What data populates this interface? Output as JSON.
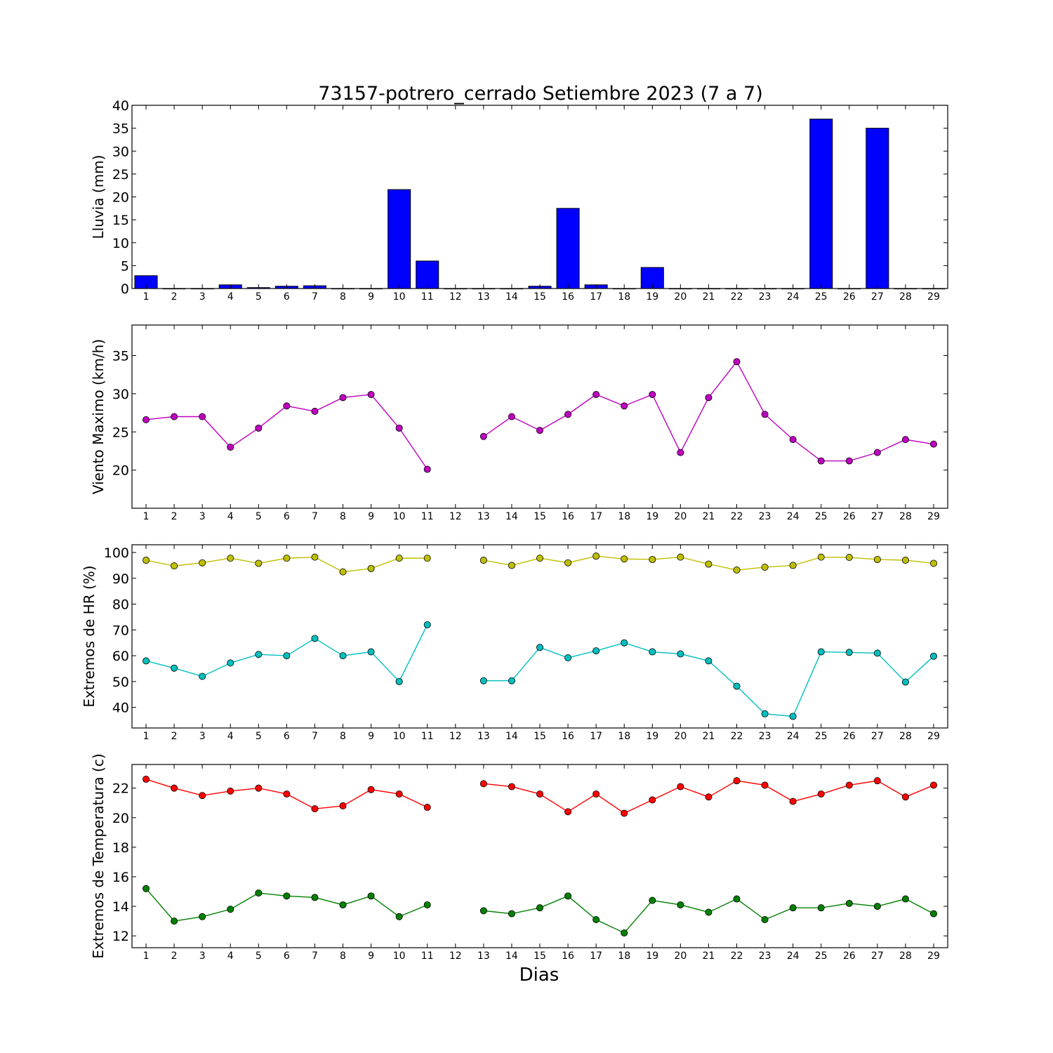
{
  "chart_data": [
    {
      "type": "bar",
      "title": "73157-potrero_cerrado Setiembre 2023  (7 a 7)",
      "ylabel": "Lluvia (mm)",
      "xlabel": "",
      "x": [
        1,
        2,
        3,
        4,
        5,
        6,
        7,
        8,
        9,
        10,
        11,
        12,
        13,
        14,
        15,
        16,
        17,
        18,
        19,
        20,
        21,
        22,
        23,
        24,
        25,
        26,
        27,
        28,
        29
      ],
      "values": [
        2.8,
        0,
        0,
        0.8,
        0.2,
        0.5,
        0.6,
        0,
        0,
        21.6,
        6.0,
        0,
        0,
        0,
        0.5,
        17.5,
        0.8,
        0,
        4.6,
        0,
        0,
        0,
        0,
        0,
        37.0,
        0,
        35.0,
        0,
        0
      ],
      "ylim": [
        0,
        40
      ],
      "yticks": [
        0,
        5,
        10,
        15,
        20,
        25,
        30,
        35,
        40
      ],
      "xlim": [
        0.5,
        29.5
      ],
      "colors": {
        "bar": "#0000ff"
      }
    },
    {
      "type": "line",
      "title": "",
      "ylabel": "Viento Maximo (km/h)",
      "xlabel": "",
      "x": [
        1,
        2,
        3,
        4,
        5,
        6,
        7,
        8,
        9,
        10,
        11,
        12,
        13,
        14,
        15,
        16,
        17,
        18,
        19,
        20,
        21,
        22,
        23,
        24,
        25,
        26,
        27,
        28,
        29
      ],
      "series": [
        {
          "values": [
            26.6,
            27.0,
            27.0,
            23.0,
            25.5,
            28.4,
            27.7,
            29.5,
            29.9,
            25.5,
            20.1,
            null,
            24.4,
            27.0,
            25.2,
            27.3,
            29.9,
            28.4,
            29.9,
            22.3,
            29.5,
            34.2,
            27.3,
            24.0,
            21.2,
            21.2,
            22.3,
            24.0,
            23.4
          ],
          "color": "#bf00bf"
        }
      ],
      "ylim": [
        15,
        39
      ],
      "yticks": [
        20,
        25,
        30,
        35
      ],
      "xlim": [
        0.5,
        29.5
      ]
    },
    {
      "type": "line",
      "title": "",
      "ylabel": "Extremos de HR (%)",
      "xlabel": "",
      "x": [
        1,
        2,
        3,
        4,
        5,
        6,
        7,
        8,
        9,
        10,
        11,
        12,
        13,
        14,
        15,
        16,
        17,
        18,
        19,
        20,
        21,
        22,
        23,
        24,
        25,
        26,
        27,
        28,
        29
      ],
      "series": [
        {
          "values": [
            97,
            94.8,
            96,
            97.8,
            95.8,
            97.8,
            98.2,
            92.5,
            93.8,
            97.8,
            97.8,
            null,
            97,
            95,
            97.8,
            96,
            98.6,
            97.5,
            97.3,
            98.2,
            95.5,
            93.2,
            94.3,
            95,
            98.2,
            98.1,
            97.3,
            97,
            95.8
          ],
          "color": "#bfbf00"
        },
        {
          "values": [
            58,
            55.2,
            52,
            57.2,
            60.5,
            60,
            66.7,
            60,
            61.5,
            50,
            72,
            null,
            50.3,
            50.3,
            63.2,
            59.2,
            61.9,
            65,
            61.5,
            60.7,
            58,
            48.2,
            37.5,
            36.5,
            61.5,
            61.3,
            61,
            49.8,
            59.8
          ],
          "color": "#00bfbf"
        }
      ],
      "ylim": [
        32,
        103
      ],
      "yticks": [
        40,
        50,
        60,
        70,
        80,
        90,
        100
      ],
      "xlim": [
        0.5,
        29.5
      ]
    },
    {
      "type": "line",
      "title": "",
      "ylabel": "Extremos de Temperatura (c)",
      "xlabel": "Dias",
      "x": [
        1,
        2,
        3,
        4,
        5,
        6,
        7,
        8,
        9,
        10,
        11,
        12,
        13,
        14,
        15,
        16,
        17,
        18,
        19,
        20,
        21,
        22,
        23,
        24,
        25,
        26,
        27,
        28,
        29
      ],
      "series": [
        {
          "values": [
            22.6,
            22.0,
            21.5,
            21.8,
            22.0,
            21.6,
            20.6,
            20.8,
            21.9,
            21.6,
            20.7,
            null,
            22.3,
            22.1,
            21.6,
            20.4,
            21.6,
            20.3,
            21.2,
            22.1,
            21.4,
            22.5,
            22.2,
            21.1,
            21.6,
            22.2,
            22.5,
            21.4,
            22.2
          ],
          "color": "#ff0000"
        },
        {
          "values": [
            15.2,
            13.0,
            13.3,
            13.8,
            14.9,
            14.7,
            14.6,
            14.1,
            14.7,
            13.3,
            14.1,
            null,
            13.7,
            13.5,
            13.9,
            14.7,
            13.1,
            12.2,
            14.4,
            14.1,
            13.6,
            14.5,
            13.1,
            13.9,
            13.9,
            14.2,
            14.0,
            14.5,
            13.5
          ],
          "color": "#008000"
        }
      ],
      "ylim": [
        11.2,
        23.6
      ],
      "yticks": [
        12,
        14,
        16,
        18,
        20,
        22
      ],
      "xlim": [
        0.5,
        29.5
      ]
    }
  ]
}
